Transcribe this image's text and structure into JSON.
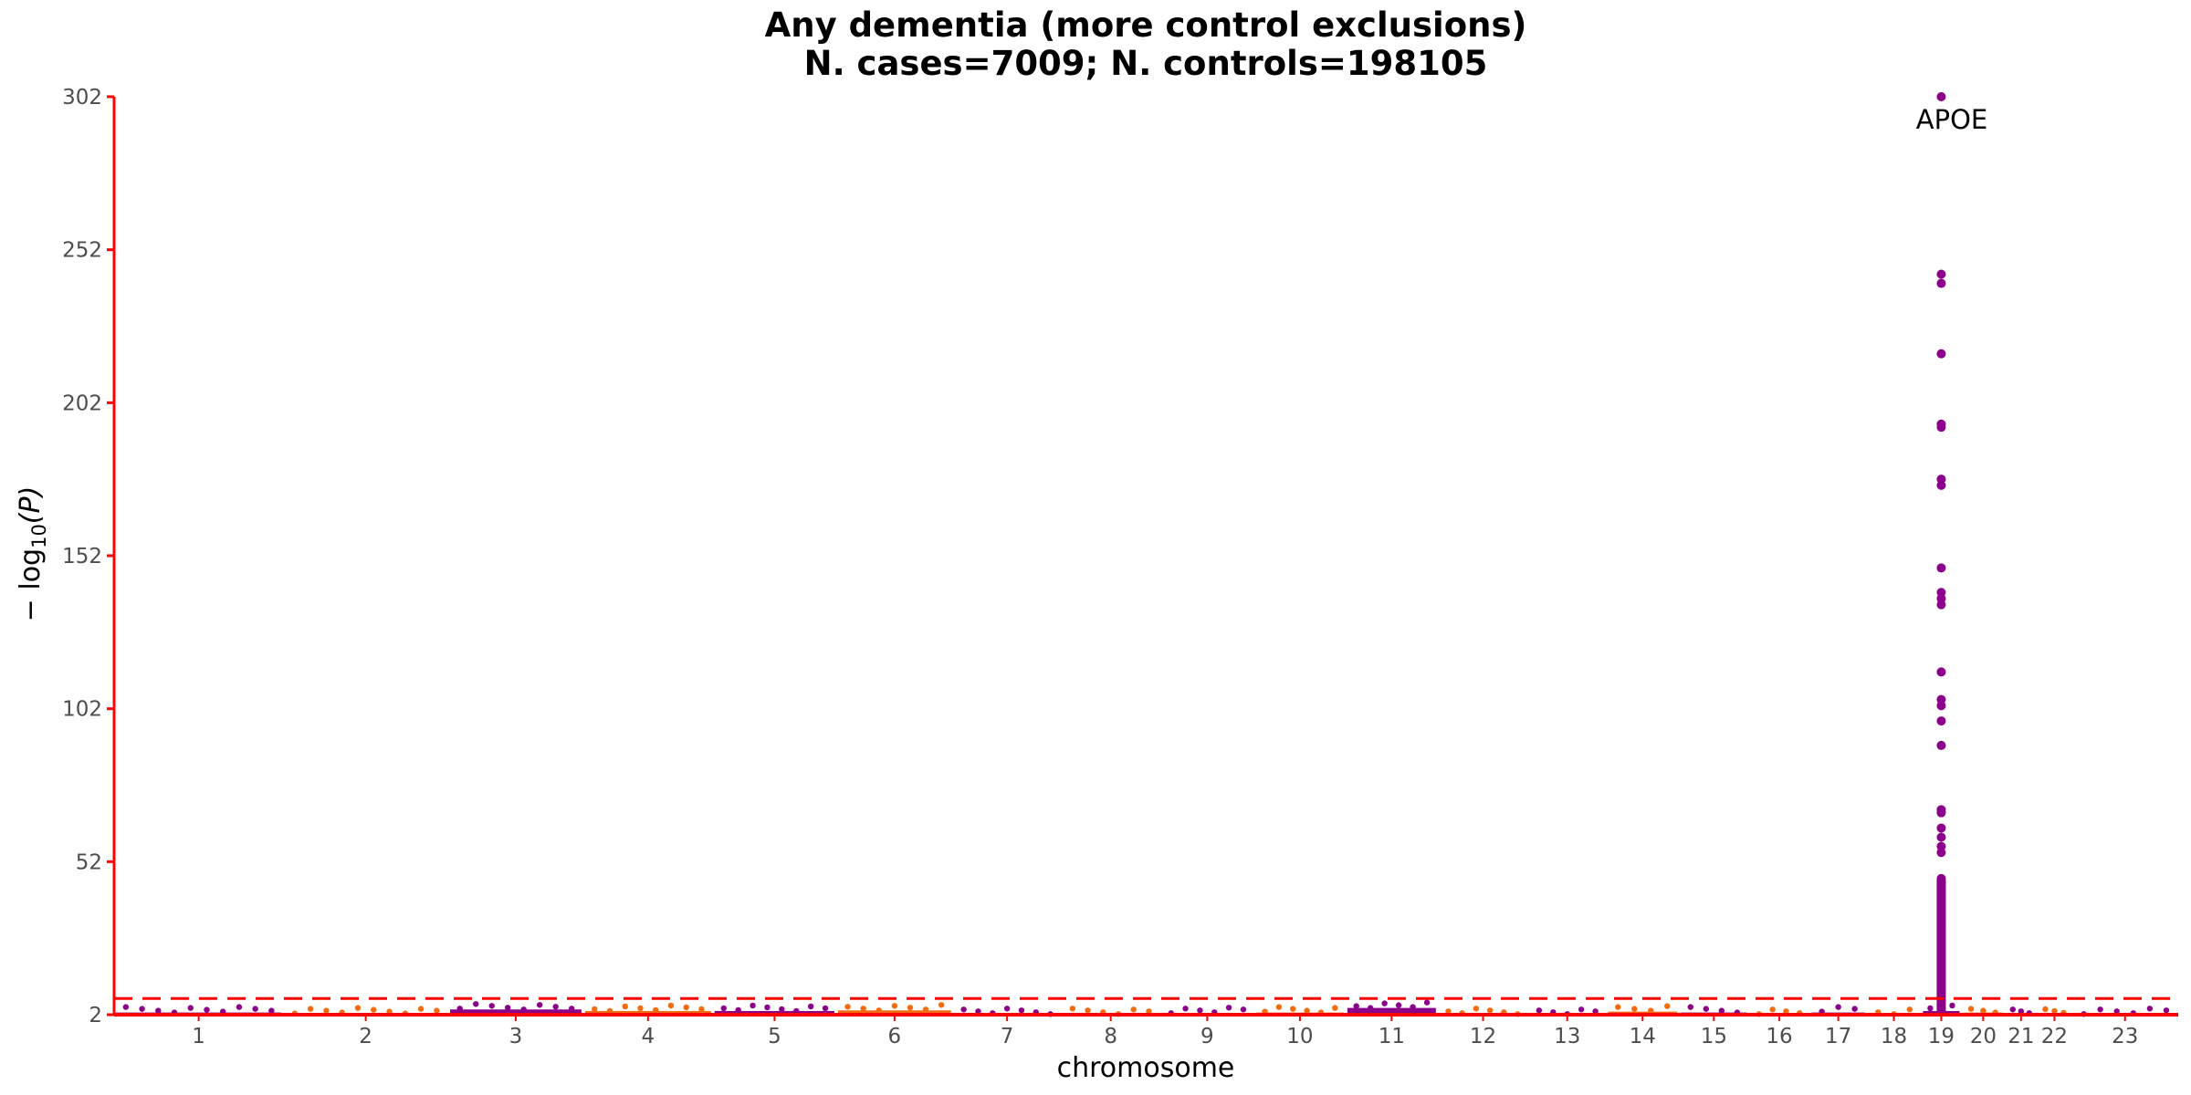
{
  "chart_data": {
    "type": "scatter",
    "subtype": "manhattan",
    "title": "Any dementia (more control exclusions)",
    "subtitle": "N. cases=7009; N. controls=198105",
    "xlabel": "chromosome",
    "ylabel": "−log10(P)",
    "ylabel_parts": {
      "prefix": "− log",
      "sub": "10",
      "suffix": "(P)"
    },
    "ylim": [
      2,
      302
    ],
    "yticks": [
      2,
      52,
      102,
      152,
      202,
      252,
      302
    ],
    "grid": false,
    "legend": "none",
    "colors": {
      "odd_chromosomes": "#8B008B",
      "even_chromosomes": "#F26B0F",
      "axis_and_threshold": "#FF0000"
    },
    "significance_threshold": 7.3,
    "chromosomes": [
      {
        "label": "1",
        "length": 248
      },
      {
        "label": "2",
        "length": 242
      },
      {
        "label": "3",
        "length": 198
      },
      {
        "label": "4",
        "length": 190
      },
      {
        "label": "5",
        "length": 181
      },
      {
        "label": "6",
        "length": 171
      },
      {
        "label": "7",
        "length": 159
      },
      {
        "label": "8",
        "length": 145
      },
      {
        "label": "9",
        "length": 138
      },
      {
        "label": "10",
        "length": 134
      },
      {
        "label": "11",
        "length": 135
      },
      {
        "label": "12",
        "length": 133
      },
      {
        "label": "13",
        "length": 114
      },
      {
        "label": "14",
        "length": 107
      },
      {
        "label": "15",
        "length": 102
      },
      {
        "label": "16",
        "length": 90
      },
      {
        "label": "17",
        "length": 83
      },
      {
        "label": "18",
        "length": 80
      },
      {
        "label": "19",
        "length": 59
      },
      {
        "label": "20",
        "length": 64
      },
      {
        "label": "21",
        "length": 47
      },
      {
        "label": "22",
        "length": 51
      },
      {
        "label": "23",
        "length": 156
      }
    ],
    "baseline_max_neglog10p": {
      "1": 4.5,
      "2": 4.2,
      "3": 5.5,
      "4": 5.0,
      "5": 5.0,
      "6": 5.2,
      "7": 4.0,
      "8": 4.0,
      "9": 4.3,
      "10": 4.5,
      "11": 6.0,
      "12": 4.0,
      "13": 4.0,
      "14": 4.8,
      "15": 4.5,
      "16": 4.0,
      "17": 4.5,
      "18": 4.0,
      "19": 5.0,
      "20": 4.5,
      "21": 4.0,
      "22": 3.8,
      "23": 4.0
    },
    "apoe_locus": {
      "chromosome": "19",
      "neglog10p": [
        302,
        244,
        241,
        218,
        195,
        194,
        177,
        175,
        148,
        140,
        138,
        136,
        114,
        105,
        103,
        98,
        90,
        69,
        68,
        63,
        60,
        57,
        55,
        45,
        43,
        41,
        39,
        37,
        35,
        33,
        31,
        29,
        27,
        25,
        23,
        21,
        19,
        17,
        15,
        13,
        11,
        9,
        8
      ]
    },
    "annotations": [
      {
        "text": "APOE",
        "chromosome": "19",
        "y": 297
      }
    ]
  }
}
